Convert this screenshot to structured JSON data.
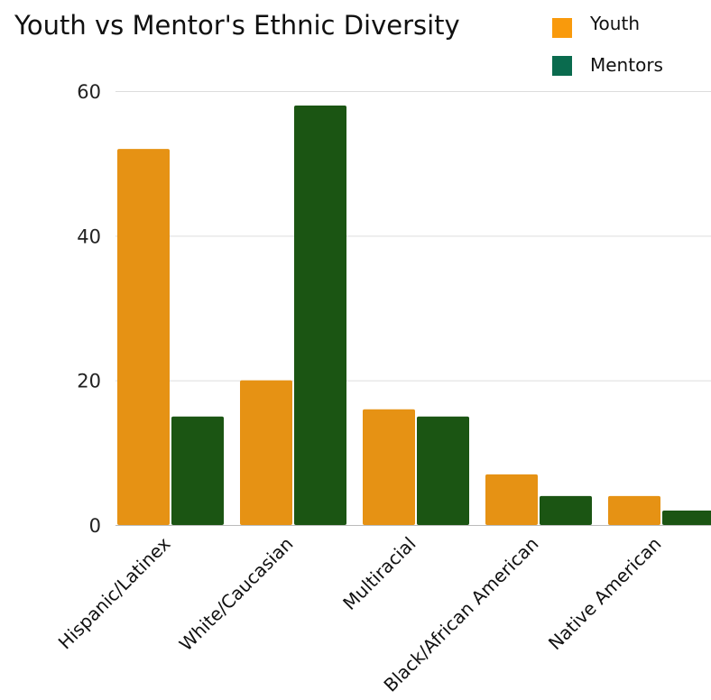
{
  "chart_data": {
    "type": "bar",
    "title": "Youth vs Mentor's Ethnic Diversity",
    "categories": [
      "Hispanic/Latinex",
      "White/Caucasian",
      "Multiracial",
      "Black/African American",
      "Native American"
    ],
    "series": [
      {
        "name": "Youth",
        "values": [
          52,
          20,
          16,
          7,
          4
        ],
        "color": "#E69214"
      },
      {
        "name": "Mentors",
        "values": [
          15,
          58,
          15,
          4,
          2
        ],
        "color": "#1B5513"
      }
    ],
    "legend_swatch_colors": [
      "#F99A0C",
      "#0A6B4E"
    ],
    "yticks": [
      0,
      20,
      40,
      60
    ],
    "ylim": [
      0,
      60
    ],
    "xlabel": "",
    "ylabel": "",
    "grid": true,
    "legend": "top-right"
  }
}
